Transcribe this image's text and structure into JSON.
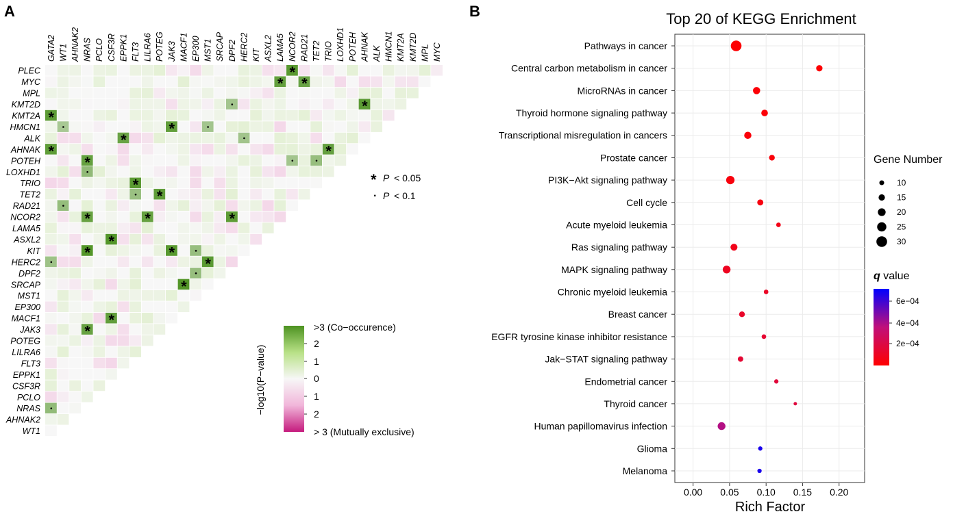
{
  "panels": {
    "a": "A",
    "b": "B"
  },
  "chart_data": [
    {
      "type": "heatmap",
      "genes_columns": [
        "GATA2",
        "WT1",
        "AHNAK2",
        "NRAS",
        "PCLO",
        "CSF3R",
        "EPPK1",
        "FLT3",
        "LILRA6",
        "POTEG",
        "JAK3",
        "MACF1",
        "EP300",
        "MST1",
        "SRCAP",
        "DPF2",
        "HERC2",
        "KIT",
        "ASXL2",
        "LAMA5",
        "NCOR2",
        "RAD21",
        "TET2",
        "TRIO",
        "LOXHD1",
        "POTEH",
        "AHNAK",
        "ALK",
        "HMCN1",
        "KMT2A",
        "KMT2D",
        "MPL",
        "MYC"
      ],
      "genes_rows": [
        "PLEC",
        "MYC",
        "MPL",
        "KMT2D",
        "KMT2A",
        "HMCN1",
        "ALK",
        "AHNAK",
        "POTEH",
        "LOXHD1",
        "TRIO",
        "TET2",
        "RAD21",
        "NCOR2",
        "LAMA5",
        "ASXL2",
        "KIT",
        "HERC2",
        "DPF2",
        "SRCAP",
        "MST1",
        "EP300",
        "MACF1",
        "JAK3",
        "POTEG",
        "LILRA6",
        "FLT3",
        "EPPK1",
        "CSF3R",
        "PCLO",
        "NRAS",
        "AHNAK2",
        "WT1"
      ],
      "significance": [
        {
          "row": "PLEC",
          "col": "NCOR2",
          "p": "<0.05"
        },
        {
          "row": "MYC",
          "col": "LAMA5",
          "p": "<0.05"
        },
        {
          "row": "MYC",
          "col": "RAD21",
          "p": "<0.05"
        },
        {
          "row": "KMT2D",
          "col": "DPF2",
          "p": "<0.1"
        },
        {
          "row": "KMT2D",
          "col": "AHNAK",
          "p": "<0.05"
        },
        {
          "row": "KMT2A",
          "col": "GATA2",
          "p": "<0.05"
        },
        {
          "row": "HMCN1",
          "col": "WT1",
          "p": "<0.1"
        },
        {
          "row": "HMCN1",
          "col": "JAK3",
          "p": "<0.05"
        },
        {
          "row": "HMCN1",
          "col": "MST1",
          "p": "<0.1"
        },
        {
          "row": "ALK",
          "col": "EPPK1",
          "p": "<0.05"
        },
        {
          "row": "ALK",
          "col": "HERC2",
          "p": "<0.1"
        },
        {
          "row": "AHNAK",
          "col": "GATA2",
          "p": "<0.05"
        },
        {
          "row": "AHNAK",
          "col": "TRIO",
          "p": "<0.05"
        },
        {
          "row": "POTEH",
          "col": "NRAS",
          "p": "<0.05"
        },
        {
          "row": "POTEH",
          "col": "NCOR2",
          "p": "<0.1"
        },
        {
          "row": "POTEH",
          "col": "TET2",
          "p": "<0.1"
        },
        {
          "row": "LOXHD1",
          "col": "NRAS",
          "p": "<0.1"
        },
        {
          "row": "TRIO",
          "col": "FLT3",
          "p": "<0.05"
        },
        {
          "row": "TET2",
          "col": "FLT3",
          "p": "<0.1"
        },
        {
          "row": "TET2",
          "col": "POTEG",
          "p": "<0.05"
        },
        {
          "row": "RAD21",
          "col": "WT1",
          "p": "<0.1"
        },
        {
          "row": "NCOR2",
          "col": "NRAS",
          "p": "<0.05"
        },
        {
          "row": "NCOR2",
          "col": "LILRA6",
          "p": "<0.05"
        },
        {
          "row": "NCOR2",
          "col": "DPF2",
          "p": "<0.05"
        },
        {
          "row": "ASXL2",
          "col": "CSF3R",
          "p": "<0.05"
        },
        {
          "row": "KIT",
          "col": "NRAS",
          "p": "<0.05"
        },
        {
          "row": "KIT",
          "col": "JAK3",
          "p": "<0.05"
        },
        {
          "row": "KIT",
          "col": "EP300",
          "p": "<0.1"
        },
        {
          "row": "HERC2",
          "col": "GATA2",
          "p": "<0.1"
        },
        {
          "row": "HERC2",
          "col": "MST1",
          "p": "<0.05"
        },
        {
          "row": "DPF2",
          "col": "EP300",
          "p": "<0.1"
        },
        {
          "row": "SRCAP",
          "col": "MACF1",
          "p": "<0.05"
        },
        {
          "row": "MACF1",
          "col": "CSF3R",
          "p": "<0.05"
        },
        {
          "row": "JAK3",
          "col": "NRAS",
          "p": "<0.05"
        },
        {
          "row": "NRAS",
          "col": "GATA2",
          "p": "<0.1"
        }
      ],
      "legend": {
        "title": "−log10(P−value)",
        "top_label": ">3 (Co−occurence)",
        "bottom_label": "> 3 (Mutually exclusive)",
        "ticks": [
          "2",
          "1",
          "0",
          "1",
          "2"
        ],
        "colors": {
          "co_occurrence": "#4d9221",
          "neutral": "#f7f7f7",
          "mutually_exclusive": "#c51b7d"
        }
      },
      "sig_legend": [
        {
          "symbol": "*",
          "label": "P",
          "cond": "< 0.05"
        },
        {
          "symbol": "·",
          "label": "P",
          "cond": "< 0.1"
        }
      ]
    },
    {
      "type": "scatter",
      "title": "Top 20 of KEGG Enrichment",
      "xlabel": "Rich Factor",
      "xlim": [
        -0.025,
        0.235
      ],
      "xticks": [
        "0.00",
        "0.05",
        "0.10",
        "0.15",
        "0.20"
      ],
      "categories": [
        "Pathways in cancer",
        "Central carbon metabolism in cancer",
        "MicroRNAs in cancer",
        "Thyroid hormone signaling pathway",
        "Transcriptional misregulation in cancers",
        "Prostate cancer",
        "PI3K−Akt signaling pathway",
        "Cell cycle",
        "Acute myeloid leukemia",
        "Ras signaling pathway",
        "MAPK signaling pathway",
        "Chronic myeloid leukemia",
        "Breast cancer",
        "EGFR tyrosine kinase inhibitor resistance",
        "Jak−STAT signaling pathway",
        "Endometrial cancer",
        "Thyroid cancer",
        "Human papillomavirus infection",
        "Glioma",
        "Melanoma"
      ],
      "rich_factor": [
        0.059,
        0.173,
        0.087,
        0.098,
        0.075,
        0.108,
        0.051,
        0.092,
        0.117,
        0.056,
        0.046,
        0.1,
        0.067,
        0.097,
        0.065,
        0.114,
        0.14,
        0.039,
        0.092,
        0.091
      ],
      "gene_number": [
        30,
        15,
        18,
        16,
        18,
        13,
        22,
        14,
        9,
        17,
        20,
        9,
        13,
        9,
        12,
        8,
        5,
        20,
        8,
        8
      ],
      "q_value": [
        1e-05,
        1e-05,
        2e-05,
        2e-05,
        3e-05,
        3e-05,
        4e-05,
        5e-05,
        7e-05,
        8e-05,
        0.0001,
        0.00012,
        0.00013,
        0.00015,
        0.00016,
        0.00018,
        0.00019,
        0.0004,
        0.0007,
        0.0007
      ],
      "size_legend": {
        "title": "Gene Number",
        "values": [
          "10",
          "15",
          "20",
          "25",
          "30"
        ]
      },
      "color_legend": {
        "title_symbol": "q",
        "title_rest": " value",
        "ticks": [
          "6e−04",
          "4e−04",
          "2e−04"
        ],
        "low_color": "#ff0000",
        "high_color": "#0000ff"
      }
    }
  ]
}
